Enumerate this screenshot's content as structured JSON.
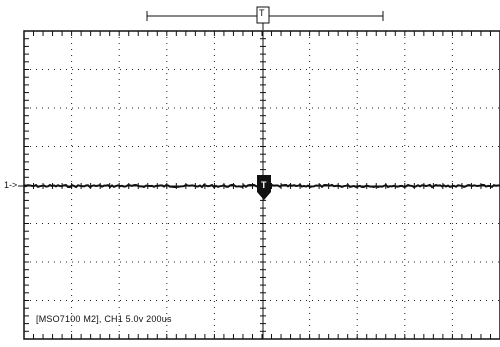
{
  "scope": {
    "status_text": "[MSO7100 M2], CH1 5.0v 200us",
    "channel_marker": "1->",
    "trigger_position_label": "T",
    "trigger_center_label": "T"
  },
  "colors": {
    "trace": "#111111",
    "grid": "#222222",
    "background": "#ffffff"
  }
}
